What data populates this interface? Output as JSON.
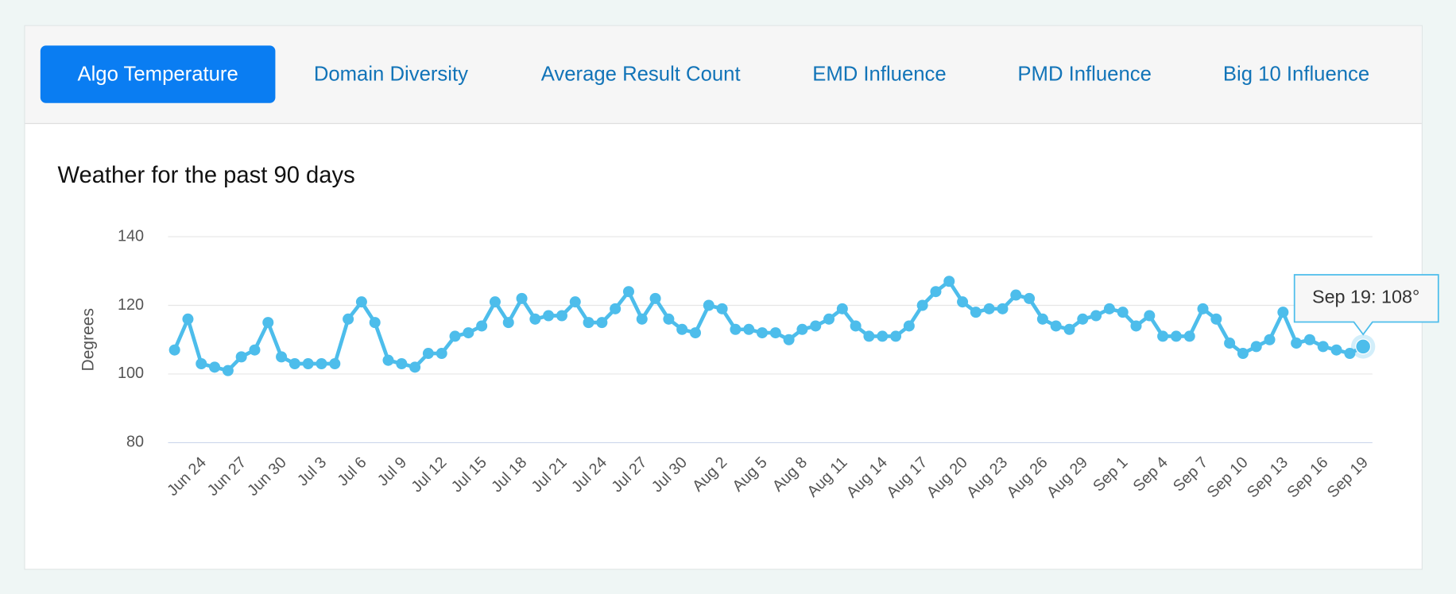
{
  "tabs": {
    "items": [
      "Algo Temperature",
      "Domain Diversity",
      "Average Result Count",
      "EMD Influence",
      "PMD Influence",
      "Big 10 Influence"
    ],
    "active": 0
  },
  "chart_data": {
    "type": "line",
    "title": "Weather for the past 90 days",
    "y_label": "Degrees",
    "categories": [
      null,
      null,
      "Jun 24",
      null,
      null,
      "Jun 27",
      null,
      null,
      "Jun 30",
      null,
      null,
      "Jul 3",
      null,
      null,
      "Jul 6",
      null,
      null,
      "Jul 9",
      null,
      null,
      "Jul 12",
      null,
      null,
      "Jul 15",
      null,
      null,
      "Jul 18",
      null,
      null,
      "Jul 21",
      null,
      null,
      "Jul 24",
      null,
      null,
      "Jul 27",
      null,
      null,
      "Jul 30",
      null,
      null,
      "Aug 2",
      null,
      null,
      "Aug 5",
      null,
      null,
      "Aug 8",
      null,
      null,
      "Aug 11",
      null,
      null,
      "Aug 14",
      null,
      null,
      "Aug 17",
      null,
      null,
      "Aug 20",
      null,
      null,
      "Aug 23",
      null,
      null,
      "Aug 26",
      null,
      null,
      "Aug 29",
      null,
      null,
      "Sep 1",
      null,
      null,
      "Sep 4",
      null,
      null,
      "Sep 7",
      null,
      null,
      "Sep 10",
      null,
      null,
      "Sep 13",
      null,
      null,
      "Sep 16",
      null,
      null,
      "Sep 19"
    ],
    "series": [
      {
        "name": "Degrees",
        "color": "#4dbdeb",
        "values": [
          107,
          116,
          103,
          102,
          101,
          105,
          107,
          115,
          105,
          103,
          103,
          103,
          103,
          116,
          121,
          115,
          104,
          103,
          102,
          106,
          106,
          111,
          112,
          114,
          121,
          115,
          122,
          116,
          117,
          117,
          121,
          115,
          115,
          119,
          124,
          116,
          122,
          116,
          113,
          112,
          120,
          119,
          113,
          113,
          112,
          112,
          110,
          113,
          114,
          116,
          119,
          114,
          111,
          111,
          111,
          114,
          120,
          124,
          127,
          121,
          118,
          119,
          119,
          123,
          122,
          116,
          114,
          113,
          116,
          117,
          119,
          118,
          114,
          117,
          111,
          111,
          111,
          119,
          116,
          109,
          106,
          108,
          110,
          118,
          109,
          110,
          108,
          107,
          106,
          108
        ]
      }
    ],
    "ylim": [
      80,
      140
    ],
    "yticks": [
      80,
      100,
      120,
      140
    ],
    "grid": true,
    "tooltip": "Sep 19: 108°"
  }
}
